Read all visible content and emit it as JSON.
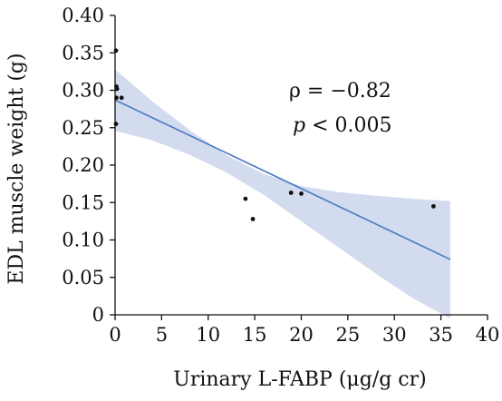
{
  "chart_data": {
    "type": "scatter",
    "xlabel": "Urinary L-FABP (μg/g cr)",
    "ylabel": "EDL muscle weight (g)",
    "xlim": [
      0,
      40
    ],
    "ylim": [
      0,
      0.4
    ],
    "x_ticks": [
      "0",
      "5",
      "10",
      "15",
      "20",
      "25",
      "30",
      "35",
      "40"
    ],
    "y_ticks": [
      "0",
      "0.05",
      "0.10",
      "0.15",
      "0.20",
      "0.25",
      "0.30",
      "0.35",
      "0.40"
    ],
    "grid": false,
    "points": [
      {
        "x": 0.1,
        "y": 0.353
      },
      {
        "x": 0.15,
        "y": 0.305
      },
      {
        "x": 0.2,
        "y": 0.302
      },
      {
        "x": 0.15,
        "y": 0.29
      },
      {
        "x": 0.7,
        "y": 0.29
      },
      {
        "x": 0.1,
        "y": 0.255
      },
      {
        "x": 14.0,
        "y": 0.155
      },
      {
        "x": 14.8,
        "y": 0.128
      },
      {
        "x": 18.9,
        "y": 0.163
      },
      {
        "x": 20.0,
        "y": 0.162
      },
      {
        "x": 34.2,
        "y": 0.145
      }
    ],
    "fit_line": {
      "x": [
        0,
        36
      ],
      "y": [
        0.287,
        0.074
      ]
    },
    "confidence_band": {
      "x": [
        0,
        4,
        8,
        12,
        16,
        20,
        24,
        28,
        32,
        36
      ],
      "upper": [
        0.328,
        0.285,
        0.247,
        0.213,
        0.188,
        0.172,
        0.164,
        0.159,
        0.155,
        0.152
      ],
      "lower": [
        0.246,
        0.233,
        0.214,
        0.19,
        0.16,
        0.125,
        0.09,
        0.055,
        0.022,
        -0.005
      ]
    },
    "line_color": "#4a79c4",
    "band_color": "#d3dbef",
    "point_color": "#111111",
    "annotations": {
      "rho": "ρ = −0.82",
      "p_symbol": "p",
      "p_rest": " < 0.005"
    }
  }
}
